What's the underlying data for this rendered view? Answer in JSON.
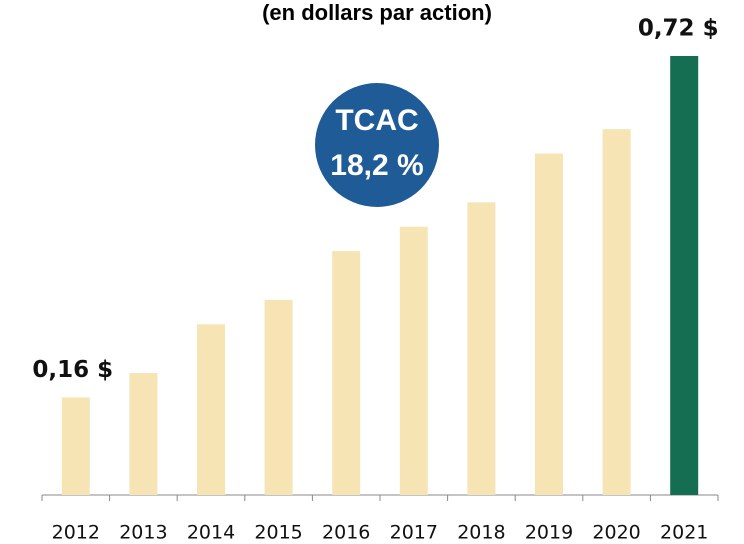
{
  "chart_data": {
    "type": "bar",
    "title": "(en dollars par action)",
    "categories": [
      "2012",
      "2013",
      "2014",
      "2015",
      "2016",
      "2017",
      "2018",
      "2019",
      "2020",
      "2021"
    ],
    "values": [
      0.16,
      0.2,
      0.28,
      0.32,
      0.4,
      0.44,
      0.48,
      0.56,
      0.6,
      0.72
    ],
    "value_labels": [
      "0,16 $",
      null,
      null,
      null,
      null,
      null,
      null,
      null,
      null,
      "0,72 $"
    ],
    "colors": [
      "#f6e4b5",
      "#f6e4b5",
      "#f6e4b5",
      "#f6e4b5",
      "#f6e4b5",
      "#f6e4b5",
      "#f6e4b5",
      "#f6e4b5",
      "#f6e4b5",
      "#156e52"
    ],
    "annotation": {
      "title": "TCAC",
      "text": "18,2 %",
      "color": "#1f5b96"
    }
  }
}
